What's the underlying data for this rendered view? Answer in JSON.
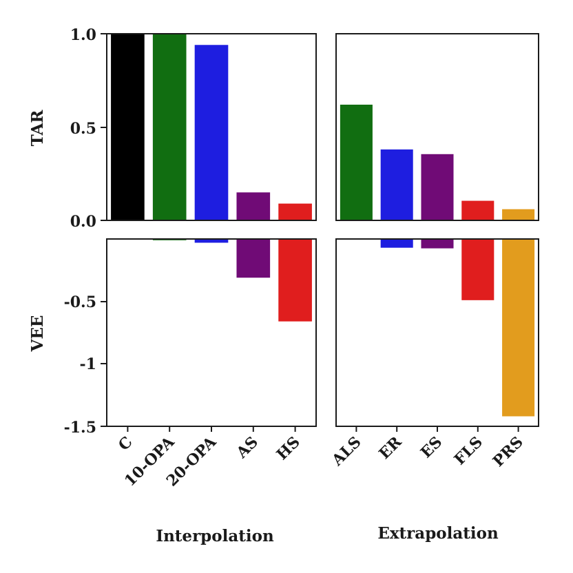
{
  "chart_data": {
    "type": "bar",
    "grid": false,
    "panels": [
      {
        "row": "TAR",
        "col": "Interpolation",
        "ylabel": "TAR",
        "ylim": [
          0,
          1.0
        ],
        "yticks": [
          "1.0",
          "0.5",
          "0.0"
        ],
        "ytick_values": [
          1.0,
          0.5,
          0.0
        ],
        "categories": [
          "C",
          "10-OPA",
          "20-OPA",
          "AS",
          "HS"
        ],
        "values": [
          1.0,
          1.0,
          0.94,
          0.15,
          0.09
        ],
        "colors": [
          "#000000",
          "#116e11",
          "#1e1ee0",
          "#700b76",
          "#e01e1e"
        ]
      },
      {
        "row": "TAR",
        "col": "Extrapolation",
        "ylabel": "",
        "ylim": [
          0,
          1.0
        ],
        "categories": [
          "ALS",
          "ER",
          "ES",
          "FLS",
          "PRS"
        ],
        "values": [
          0.62,
          0.38,
          0.355,
          0.105,
          0.06
        ],
        "colors": [
          "#116e11",
          "#1e1ee0",
          "#700b76",
          "#e01e1e",
          "#e29c1e"
        ]
      },
      {
        "row": "VEE",
        "col": "Interpolation",
        "ylabel": "VEE",
        "ylim": [
          -1.5,
          0
        ],
        "yticks": [
          "-0.5",
          "-1",
          "-1.5"
        ],
        "ytick_values": [
          -0.5,
          -1.0,
          -1.5
        ],
        "xlabel": "Interpolation",
        "categories": [
          "C",
          "10-OPA",
          "20-OPA",
          "AS",
          "HS"
        ],
        "values": [
          0.0,
          -0.01,
          -0.03,
          -0.31,
          -0.66
        ],
        "colors": [
          "#000000",
          "#116e11",
          "#1e1ee0",
          "#700b76",
          "#e01e1e"
        ]
      },
      {
        "row": "VEE",
        "col": "Extrapolation",
        "ylabel": "",
        "ylim": [
          -1.5,
          0
        ],
        "xlabel": "Extrapolation",
        "categories": [
          "ALS",
          "ER",
          "ES",
          "FLS",
          "PRS"
        ],
        "values": [
          0.0,
          -0.07,
          -0.075,
          -0.49,
          -1.42
        ],
        "colors": [
          "#116e11",
          "#1e1ee0",
          "#700b76",
          "#e01e1e",
          "#e29c1e"
        ]
      }
    ]
  }
}
